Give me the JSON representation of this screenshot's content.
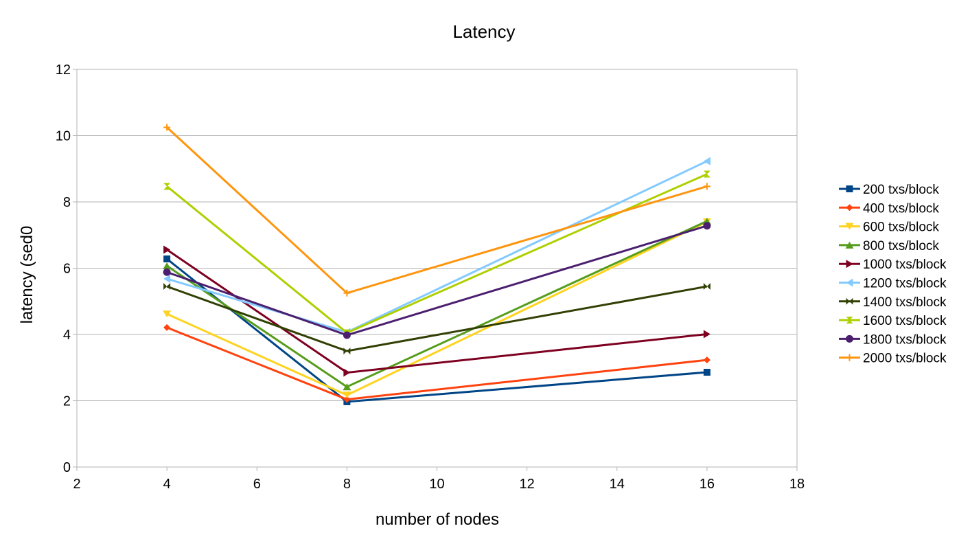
{
  "chart_data": {
    "type": "line",
    "title": "Latency",
    "xlabel": "number of nodes",
    "ylabel": "latency (sed0",
    "xlim": [
      2,
      18
    ],
    "ylim": [
      0,
      12
    ],
    "x_ticks": [
      "2",
      "4",
      "6",
      "8",
      "10",
      "12",
      "14",
      "16",
      "18"
    ],
    "y_ticks": [
      "0",
      "2",
      "4",
      "6",
      "8",
      "10",
      "12"
    ],
    "grid": "horizontal",
    "legend_position": "right",
    "x": [
      4,
      8,
      16
    ],
    "series": [
      {
        "name": "200 txs/block",
        "values": [
          6.28,
          1.97,
          2.86
        ],
        "color": "#004586",
        "marker": "square"
      },
      {
        "name": "400 txs/block",
        "values": [
          4.21,
          2.04,
          3.23
        ],
        "color": "#ff420e",
        "marker": "diamond"
      },
      {
        "name": "600 txs/block",
        "values": [
          4.62,
          2.17,
          7.4
        ],
        "color": "#ffd320",
        "marker": "triangle-down"
      },
      {
        "name": "800 txs/block",
        "values": [
          6.07,
          2.42,
          7.42
        ],
        "color": "#579d1c",
        "marker": "triangle-up"
      },
      {
        "name": "1000 txs/block",
        "values": [
          6.56,
          2.85,
          4.01
        ],
        "color": "#7e0021",
        "marker": "triangle-right"
      },
      {
        "name": "1200 txs/block",
        "values": [
          5.68,
          4.07,
          9.23
        ],
        "color": "#83caff",
        "marker": "triangle-left"
      },
      {
        "name": "1400 txs/block",
        "values": [
          5.45,
          3.5,
          5.45
        ],
        "color": "#314004",
        "marker": "bowtie"
      },
      {
        "name": "1600 txs/block",
        "values": [
          8.47,
          4.05,
          8.84
        ],
        "color": "#aecf00",
        "marker": "hourglass"
      },
      {
        "name": "1800 txs/block",
        "values": [
          5.88,
          3.98,
          7.28
        ],
        "color": "#4b1f6f",
        "marker": "circle"
      },
      {
        "name": "2000 txs/block",
        "values": [
          10.25,
          5.25,
          8.47
        ],
        "color": "#ff950e",
        "marker": "plus"
      }
    ]
  }
}
